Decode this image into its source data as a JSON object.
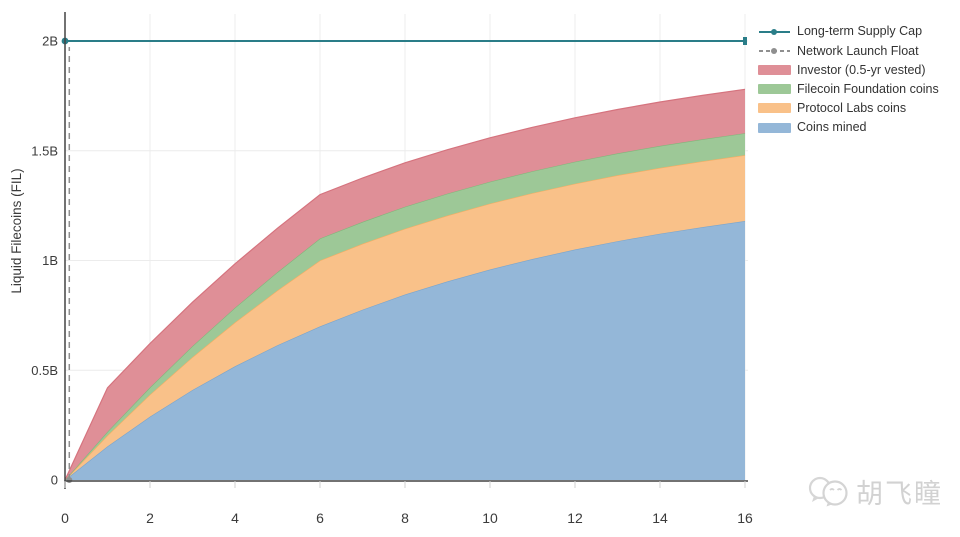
{
  "colors": {
    "supply_cap": "#2a7d88",
    "launch_float": "#8f8f8f",
    "investor": "#df8f97",
    "foundation": "#9dc897",
    "protocol_labs": "#f9c189",
    "mined": "#94b7d8",
    "axis": "#444444",
    "tick_text": "#3b3b3b",
    "grid": "#ececec",
    "watermark": "#d2d2d2"
  },
  "legend": {
    "items": [
      {
        "label": "Long-term Supply Cap",
        "swatch": "line",
        "color": "#2a7d88"
      },
      {
        "label": "Network Launch Float",
        "swatch": "dashed-line",
        "color": "#8f8f8f"
      },
      {
        "label": "Investor (0.5-yr vested)",
        "swatch": "box",
        "color": "#df8f97"
      },
      {
        "label": "Filecoin Foundation coins",
        "swatch": "box",
        "color": "#9dc897"
      },
      {
        "label": "Protocol Labs coins",
        "swatch": "box",
        "color": "#f9c189"
      },
      {
        "label": "Coins mined",
        "swatch": "box",
        "color": "#94b7d8"
      }
    ]
  },
  "watermark": {
    "icon": "wechat-icon",
    "text": "胡飞瞳"
  },
  "chart_data": {
    "type": "area",
    "stacked": true,
    "title": "",
    "xlabel": "",
    "ylabel": "Liquid Filecoins (FIL)",
    "xlim": [
      0,
      16.07
    ],
    "ylim": [
      0,
      2.15
    ],
    "grid": true,
    "legend_position": "top-right",
    "units": "billions of FIL",
    "x": [
      0,
      1,
      2,
      3,
      4,
      5,
      6,
      7,
      8,
      9,
      10,
      11,
      12,
      13,
      14,
      15,
      16
    ],
    "series": [
      {
        "id": "mined",
        "name": "Coins mined",
        "color": "#94b7d8",
        "edge_color": "#7aa5cd",
        "values": [
          0,
          0.153,
          0.289,
          0.41,
          0.518,
          0.614,
          0.7,
          0.776,
          0.845,
          0.905,
          0.959,
          1.007,
          1.05,
          1.088,
          1.122,
          1.152,
          1.18
        ]
      },
      {
        "id": "protocol-labs",
        "name": "Protocol Labs coins",
        "color": "#f9c189",
        "edge_color": "#f5ad62",
        "values": [
          0,
          0.05,
          0.1,
          0.15,
          0.2,
          0.25,
          0.3,
          0.3,
          0.3,
          0.3,
          0.3,
          0.3,
          0.3,
          0.3,
          0.3,
          0.3,
          0.3
        ]
      },
      {
        "id": "foundation",
        "name": "Filecoin Foundation coins",
        "color": "#9dc897",
        "edge_color": "#82b67a",
        "values": [
          0,
          0.017,
          0.033,
          0.05,
          0.067,
          0.083,
          0.1,
          0.1,
          0.1,
          0.1,
          0.1,
          0.1,
          0.1,
          0.1,
          0.1,
          0.1,
          0.1
        ]
      },
      {
        "id": "investor",
        "name": "Investor (0.5-yr vested)",
        "color": "#df8f97",
        "edge_color": "#d5737e",
        "values": [
          0,
          0.2,
          0.2,
          0.2,
          0.2,
          0.2,
          0.2,
          0.2,
          0.2,
          0.2,
          0.2,
          0.2,
          0.2,
          0.2,
          0.2,
          0.2,
          0.2
        ]
      }
    ],
    "lines": [
      {
        "id": "supply-cap",
        "name": "Long-term Supply Cap",
        "style": "solid",
        "color": "#2a7d88",
        "y": 2.0,
        "x_start": 0,
        "x_end": 16
      },
      {
        "id": "launch-float",
        "name": "Network Launch Float",
        "style": "dashed",
        "color": "#8f8f8f",
        "x": 0.1,
        "y_start": 0,
        "y_end": 2.0
      }
    ],
    "x_ticks": {
      "values": [
        0,
        2,
        4,
        6,
        8,
        10,
        12,
        14,
        16
      ],
      "labels": [
        "0",
        "2",
        "4",
        "6",
        "8",
        "10",
        "12",
        "14",
        "16"
      ]
    },
    "y_ticks": {
      "values": [
        0,
        0.5,
        1,
        1.5,
        2
      ],
      "labels": [
        "0",
        "0.5B",
        "1B",
        "1.5B",
        "2B"
      ]
    }
  }
}
